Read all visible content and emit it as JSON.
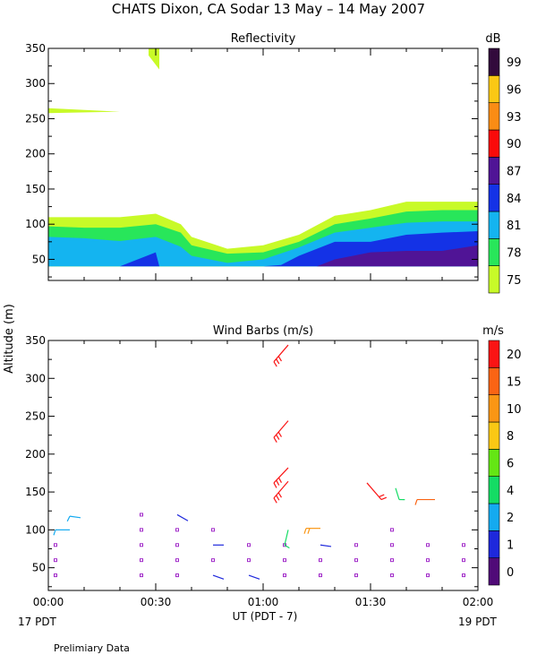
{
  "title": "CHATS Dixon, CA  Sodar  13 May – 14 May 2007",
  "y_axis_label": "Altitude (m)",
  "x_axis_label": "UT  (PDT - 7)",
  "left_time_label": "17 PDT",
  "right_time_label": "19 PDT",
  "footer_note": "Prelimiary Data",
  "chart_data": [
    {
      "type": "area",
      "title": "Reflectivity",
      "xlabel": "",
      "ylabel": "Altitude (m)",
      "xlim": [
        0,
        120
      ],
      "ylim": [
        20,
        350
      ],
      "x_ticks": [
        0,
        30,
        60,
        90,
        120
      ],
      "x_tick_labels": [
        "00:00",
        "00:30",
        "01:00",
        "01:30",
        "02:00"
      ],
      "y_ticks": [
        50,
        100,
        150,
        200,
        250,
        300,
        350
      ],
      "y_tick_labels": [
        "50",
        "100",
        "150",
        "200",
        "250",
        "300",
        "350"
      ],
      "colorbar": {
        "unit": "dB",
        "labels": [
          "75",
          "78",
          "81",
          "84",
          "87",
          "90",
          "93",
          "96",
          "99"
        ],
        "colors": [
          "#c8fa28",
          "#28e65a",
          "#14b4f0",
          "#1432e6",
          "#501496",
          "#fa0a0a",
          "#fa8c14",
          "#fac814",
          "#320a3c"
        ]
      },
      "layers": [
        {
          "level": "75",
          "color": "#c8fa28",
          "x": [
            0,
            10,
            20,
            30,
            37,
            40,
            50,
            60,
            70,
            80,
            90,
            100,
            110,
            120
          ],
          "y": [
            110,
            110,
            110,
            115,
            100,
            82,
            65,
            70,
            85,
            112,
            120,
            132,
            132,
            132
          ]
        },
        {
          "level": "78",
          "color": "#28e65a",
          "x": [
            0,
            10,
            20,
            30,
            37,
            40,
            50,
            60,
            70,
            80,
            90,
            100,
            110,
            120
          ],
          "y": [
            97,
            95,
            95,
            100,
            88,
            70,
            58,
            60,
            75,
            100,
            108,
            118,
            120,
            120
          ]
        },
        {
          "level": "81",
          "color": "#14b4f0",
          "x": [
            0,
            10,
            20,
            30,
            37,
            40,
            50,
            60,
            70,
            80,
            90,
            100,
            110,
            120
          ],
          "y": [
            82,
            80,
            76,
            82,
            68,
            55,
            45,
            50,
            67,
            88,
            95,
            102,
            104,
            104
          ]
        },
        {
          "level": "84",
          "color": "#1432e6",
          "x": [
            20,
            30,
            31,
            60,
            65,
            70,
            80,
            90,
            100,
            110,
            120
          ],
          "y": [
            40,
            60,
            40,
            40,
            42,
            55,
            75,
            75,
            85,
            88,
            90
          ]
        },
        {
          "level": "87",
          "color": "#501496",
          "x": [
            75,
            80,
            90,
            100,
            110,
            120
          ],
          "y": [
            40,
            50,
            60,
            62,
            62,
            70
          ]
        }
      ],
      "patches": [
        {
          "color": "#c8fa28",
          "x": [
            0,
            20
          ],
          "y_top": [
            265,
            260
          ],
          "y_bottom": [
            258,
            260
          ]
        },
        {
          "color": "#c8fa28",
          "x": [
            28,
            31
          ],
          "y_top": [
            350,
            350
          ],
          "y_bottom": [
            340,
            320
          ]
        }
      ]
    },
    {
      "type": "scatter",
      "title": "Wind Barbs (m/s)",
      "xlabel": "UT  (PDT - 7)",
      "ylabel": "Altitude (m)",
      "xlim": [
        0,
        120
      ],
      "ylim": [
        20,
        350
      ],
      "x_ticks": [
        0,
        30,
        60,
        90,
        120
      ],
      "x_tick_labels": [
        "00:00",
        "00:30",
        "01:00",
        "01:30",
        "02:00"
      ],
      "y_ticks": [
        50,
        100,
        150,
        200,
        250,
        300,
        350
      ],
      "y_tick_labels": [
        "50",
        "100",
        "150",
        "200",
        "250",
        "300",
        "350"
      ],
      "colorbar": {
        "unit": "m/s",
        "labels": [
          "0",
          "1",
          "2",
          "4",
          "6",
          "8",
          "10",
          "15",
          "20"
        ],
        "colors": [
          "#500a78",
          "#1e28dc",
          "#14aaf0",
          "#14dc64",
          "#64e614",
          "#fac814",
          "#fa9614",
          "#fa6414",
          "#fa1414"
        ]
      },
      "calm_points": {
        "color": "#a028c8",
        "points": [
          {
            "x": 2,
            "y": 40
          },
          {
            "x": 2,
            "y": 60
          },
          {
            "x": 2,
            "y": 80
          },
          {
            "x": 26,
            "y": 40
          },
          {
            "x": 26,
            "y": 60
          },
          {
            "x": 26,
            "y": 80
          },
          {
            "x": 26,
            "y": 100
          },
          {
            "x": 26,
            "y": 120
          },
          {
            "x": 36,
            "y": 40
          },
          {
            "x": 36,
            "y": 60
          },
          {
            "x": 36,
            "y": 80
          },
          {
            "x": 36,
            "y": 100
          },
          {
            "x": 46,
            "y": 60
          },
          {
            "x": 46,
            "y": 100
          },
          {
            "x": 56,
            "y": 60
          },
          {
            "x": 56,
            "y": 80
          },
          {
            "x": 66,
            "y": 40
          },
          {
            "x": 66,
            "y": 60
          },
          {
            "x": 66,
            "y": 80
          },
          {
            "x": 76,
            "y": 40
          },
          {
            "x": 76,
            "y": 60
          },
          {
            "x": 86,
            "y": 40
          },
          {
            "x": 86,
            "y": 60
          },
          {
            "x": 86,
            "y": 80
          },
          {
            "x": 96,
            "y": 40
          },
          {
            "x": 96,
            "y": 60
          },
          {
            "x": 96,
            "y": 80
          },
          {
            "x": 96,
            "y": 100
          },
          {
            "x": 106,
            "y": 40
          },
          {
            "x": 106,
            "y": 60
          },
          {
            "x": 106,
            "y": 80
          },
          {
            "x": 116,
            "y": 40
          },
          {
            "x": 116,
            "y": 60
          },
          {
            "x": 116,
            "y": 80
          }
        ]
      },
      "barbs": [
        {
          "x": 2,
          "y": 100,
          "dx": 4,
          "dy": 0,
          "barbs": 1,
          "color": "#14aaf0"
        },
        {
          "x": 6,
          "y": 118,
          "dx": 3,
          "dy": -2,
          "barbs": 1,
          "color": "#14aaf0"
        },
        {
          "x": 36,
          "y": 120,
          "dx": 3,
          "dy": -8,
          "barbs": 0,
          "color": "#1e28dc"
        },
        {
          "x": 46,
          "y": 80,
          "dx": 3,
          "dy": 0,
          "barbs": 0,
          "color": "#1e28dc"
        },
        {
          "x": 46,
          "y": 40,
          "dx": 3,
          "dy": -5,
          "barbs": 0,
          "color": "#1e28dc"
        },
        {
          "x": 56,
          "y": 40,
          "dx": 3,
          "dy": -5,
          "barbs": 0,
          "color": "#1e28dc"
        },
        {
          "x": 76,
          "y": 80,
          "dx": 3,
          "dy": -2,
          "barbs": 0,
          "color": "#1e28dc"
        },
        {
          "x": 66,
          "y": 80,
          "dx": 1,
          "dy": 20,
          "barbs": 1,
          "color": "#14dc64"
        },
        {
          "x": 72,
          "y": 102,
          "dx": 4,
          "dy": 0,
          "barbs": 2,
          "color": "#fa9614"
        },
        {
          "x": 63,
          "y": 142,
          "dx": 4,
          "dy": 22,
          "barbs": 3,
          "color": "#fa1414"
        },
        {
          "x": 63,
          "y": 162,
          "dx": 4,
          "dy": 20,
          "barbs": 3,
          "color": "#fa1414"
        },
        {
          "x": 63,
          "y": 222,
          "dx": 4,
          "dy": 22,
          "barbs": 3,
          "color": "#fa1414"
        },
        {
          "x": 63,
          "y": 322,
          "dx": 4,
          "dy": 22,
          "barbs": 3,
          "color": "#fa1414"
        },
        {
          "x": 93,
          "y": 140,
          "dx": -4,
          "dy": 22,
          "barbs": 2,
          "color": "#fa1414"
        },
        {
          "x": 98,
          "y": 140,
          "dx": -1,
          "dy": 15,
          "barbs": 1,
          "color": "#14dc64"
        },
        {
          "x": 103,
          "y": 140,
          "dx": 5,
          "dy": 0,
          "barbs": 1,
          "color": "#fa6414"
        }
      ]
    }
  ]
}
